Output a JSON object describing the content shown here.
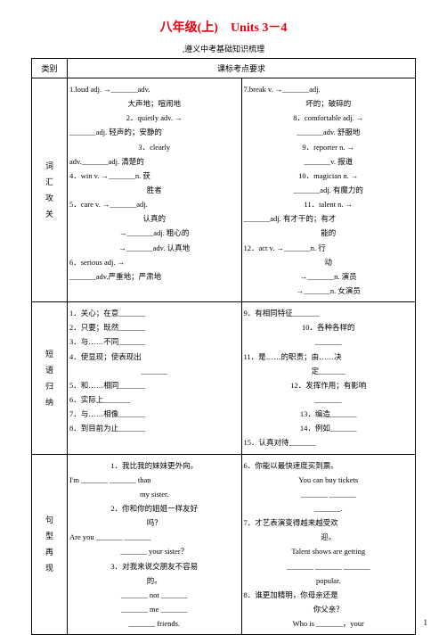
{
  "title": "八年级(上)　Units 3－4",
  "subtitle": ",遵义中考基础知识梳理",
  "header": {
    "col1": "类别",
    "col2": "课标考点要求"
  },
  "section1": {
    "label": "词汇攻关",
    "left": {
      "i1": "1.loud adj. →_______adv.",
      "i1b": "大声地；喧闹地",
      "i2": "2．quietly adv. →",
      "i2b": "_______adj. 轻声的；安静的",
      "i3": "3．clearly",
      "i3b": "adv._______adj. 清楚的",
      "i4": "4．win v. →_______n. 获",
      "i4b": "胜者",
      "i5": "5．care v. →_______adj.",
      "i5b": "认真的",
      "i5c": "→_______adj. 粗心的",
      "i5d": "→_______adv. 认真地",
      "i6": "6．serious adj. →",
      "i6b": "_______adv.严重地；严肃地"
    },
    "right": {
      "i7": "7.break v. →_______adj.",
      "i7b": "坏的；破碎的",
      "i8": "8．comfortable adj. →",
      "i8b": "_______adv. 舒服地",
      "i9": "9．reporter n. →",
      "i9b": "_______v. 报道",
      "i10": "10．magician n. →",
      "i10b": "_______adj. 有魔力的",
      "i11": "11．talent n. →",
      "i11b": "_______adj. 有才干的；有才",
      "i11c": "能的",
      "i12": "12．act v. →_______n. 行",
      "i12b": "动",
      "i12c": "→_______n. 演员",
      "i12d": "→_______n. 女演员"
    }
  },
  "section2": {
    "label": "短语归纳",
    "left": {
      "i1": "1．关心；在意_______",
      "i2": "2．只要；既然_______",
      "i3": "3．与……不同_______",
      "i4": "4．使显现；使表现出",
      "i4b": "_______",
      "i5": "5．和……相同_______",
      "i6": "6．实际上_______",
      "i7": "7．与……相像_______",
      "i8": "8．到目前为止_______"
    },
    "right": {
      "i9": "9．有相同特征_______",
      "i10": "10．各种各样的",
      "i10b": "_______",
      "i11": "11．是……的职责；由……决",
      "i11b": "定_______",
      "i12": "12．发挥作用；有影响",
      "i12b": "_______",
      "i13": "13．编造_______",
      "i14": "14．例如_______",
      "i15": "15．认真对待_______"
    }
  },
  "section3": {
    "label": "句型再现",
    "left": {
      "i1": "1．我比我的妹妹更外向。",
      "i1b": "I'm _______ _______ than",
      "i1c": "my sister.",
      "i2": "2．你和你的姐姐一样友好",
      "i2b": "吗？",
      "i2c": "Are you _______ _______",
      "i2d": "_______ your sister？",
      "i3": "3．对我来说交朋友不容易",
      "i3b": "的。",
      "i3c": "_______ not _______",
      "i3d": "_______ me _______",
      "i3e": "_______ friends."
    },
    "right": {
      "i6": "6．你能以最快速度买到票。",
      "i6b": "You can buy tickets",
      "i6c": "_______ _______",
      "i6d": "_______.",
      "i7": "7．才艺表演变得越来越受欢",
      "i7b": "迎。",
      "i7c": "Talent shows are getting",
      "i7d": "_______ _______ _______",
      "i7e": "popular.",
      "i8": "8．谁更加精明，你母亲还是",
      "i8b": "你父亲？",
      "i8c": "Who is _______，your"
    }
  },
  "page": "1",
  "colors": {
    "title": "#e60012",
    "border": "#000000",
    "text": "#000000",
    "background": "#ffffff"
  }
}
